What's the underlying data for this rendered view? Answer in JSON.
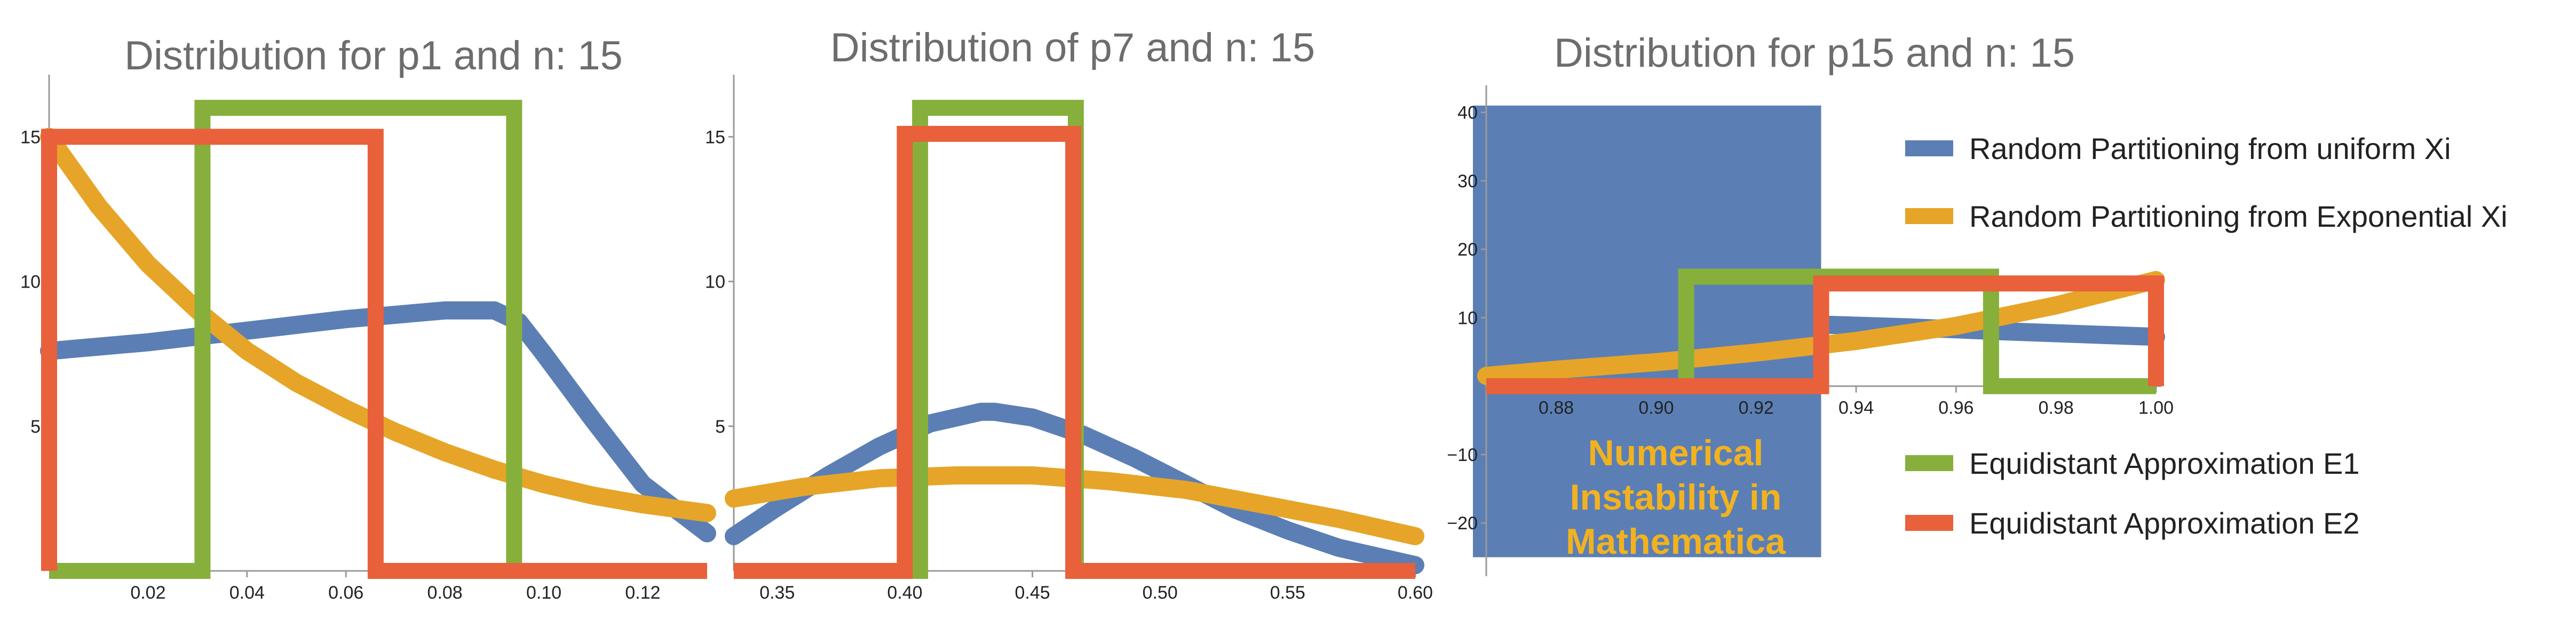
{
  "chart_data": [
    {
      "type": "line",
      "title": "Distribution for p1 and n: 15",
      "xlim": [
        0,
        0.133
      ],
      "ylim": [
        0,
        16.5
      ],
      "x_ticks": [
        "0.02",
        "0.04",
        "0.06",
        "0.08",
        "0.10",
        "0.12"
      ],
      "x_tick_values": [
        0.02,
        0.04,
        0.06,
        0.08,
        0.1,
        0.12
      ],
      "y_ticks": [
        "5",
        "10",
        "15"
      ],
      "y_tick_values": [
        5,
        10,
        15
      ],
      "series": [
        {
          "name": "Random Partitioning from uniform Xi",
          "color": "#5b7fb4",
          "x": [
            0,
            0.02,
            0.04,
            0.06,
            0.08,
            0.09,
            0.095,
            0.1,
            0.11,
            0.12,
            0.133
          ],
          "y": [
            7.6,
            7.9,
            8.3,
            8.7,
            9.0,
            9.0,
            8.6,
            7.5,
            5.2,
            3.0,
            1.3
          ]
        },
        {
          "name": "Random Partitioning from Exponential Xi",
          "color": "#e6a528",
          "x": [
            0,
            0.01,
            0.02,
            0.03,
            0.04,
            0.05,
            0.06,
            0.07,
            0.08,
            0.09,
            0.1,
            0.11,
            0.12,
            0.133
          ],
          "y": [
            15.0,
            12.6,
            10.6,
            9.0,
            7.6,
            6.5,
            5.6,
            4.8,
            4.1,
            3.5,
            3.0,
            2.6,
            2.3,
            2.0
          ]
        },
        {
          "name": "Equidistant Approximation E1",
          "color": "#86b03b",
          "step": true,
          "x": [
            0,
            0.031,
            0.031,
            0.094,
            0.094,
            0.133
          ],
          "y": [
            0,
            0,
            16.0,
            16.0,
            0,
            0
          ]
        },
        {
          "name": "Equidistant Approximation E2",
          "color": "#e8613a",
          "step": true,
          "x": [
            0,
            0,
            0.066,
            0.066,
            0.133
          ],
          "y": [
            0,
            15.0,
            15.0,
            0,
            0
          ]
        }
      ]
    },
    {
      "type": "line",
      "title": "Distribution of p7 and n: 15",
      "xlim": [
        0.333,
        0.6
      ],
      "ylim": [
        0,
        16.5
      ],
      "x_ticks": [
        "0.35",
        "0.40",
        "0.45",
        "0.50",
        "0.55",
        "0.60"
      ],
      "x_tick_values": [
        0.35,
        0.4,
        0.45,
        0.5,
        0.55,
        0.6
      ],
      "y_ticks": [
        "5",
        "10",
        "15"
      ],
      "y_tick_values": [
        5,
        10,
        15
      ],
      "series": [
        {
          "name": "Random Partitioning from uniform Xi",
          "color": "#5b7fb4",
          "x": [
            0.333,
            0.35,
            0.37,
            0.39,
            0.41,
            0.43,
            0.435,
            0.45,
            0.47,
            0.49,
            0.51,
            0.53,
            0.55,
            0.57,
            0.6
          ],
          "y": [
            1.2,
            2.2,
            3.3,
            4.3,
            5.1,
            5.5,
            5.5,
            5.3,
            4.7,
            3.9,
            3.0,
            2.1,
            1.4,
            0.8,
            0.2
          ]
        },
        {
          "name": "Random Partitioning from Exponential Xi",
          "color": "#e6a528",
          "x": [
            0.333,
            0.36,
            0.39,
            0.42,
            0.435,
            0.45,
            0.48,
            0.51,
            0.54,
            0.57,
            0.6
          ],
          "y": [
            2.5,
            2.9,
            3.2,
            3.3,
            3.3,
            3.3,
            3.1,
            2.8,
            2.3,
            1.8,
            1.2
          ]
        },
        {
          "name": "Equidistant Approximation E1",
          "color": "#86b03b",
          "step": true,
          "x": [
            0.333,
            0.406,
            0.406,
            0.467,
            0.467,
            0.6
          ],
          "y": [
            0,
            0,
            16.0,
            16.0,
            0,
            0
          ]
        },
        {
          "name": "Equidistant Approximation E2",
          "color": "#e8613a",
          "step": true,
          "x": [
            0.333,
            0.4,
            0.4,
            0.466,
            0.466,
            0.6
          ],
          "y": [
            0,
            0,
            15.1,
            15.1,
            0,
            0
          ]
        }
      ]
    },
    {
      "type": "line",
      "title": "Distribution for p15 and n: 15",
      "xlim": [
        0.866,
        1.0
      ],
      "ylim": [
        -27,
        42
      ],
      "x_ticks": [
        "0.88",
        "0.90",
        "0.92",
        "0.94",
        "0.96",
        "0.98",
        "1.00"
      ],
      "x_tick_values": [
        0.88,
        0.9,
        0.92,
        0.94,
        0.96,
        0.98,
        1.0
      ],
      "y_ticks": [
        "−20",
        "−10",
        "10",
        "20",
        "30",
        "40"
      ],
      "y_tick_values": [
        -20,
        -10,
        10,
        20,
        30,
        40
      ],
      "series": [
        {
          "name": "Random Partitioning from uniform Xi",
          "color": "#5b7fb4",
          "x": [
            0.933,
            0.95,
            0.97,
            1.0
          ],
          "y": [
            9.0,
            8.6,
            8.0,
            7.2
          ]
        },
        {
          "name": "Random Partitioning from Exponential Xi",
          "color": "#e6a528",
          "x": [
            0.866,
            0.88,
            0.9,
            0.92,
            0.94,
            0.96,
            0.98,
            1.0
          ],
          "y": [
            1.5,
            2.4,
            3.5,
            4.9,
            6.6,
            8.8,
            11.8,
            15.5
          ]
        },
        {
          "name": "Equidistant Approximation E1",
          "color": "#86b03b",
          "step": true,
          "x": [
            0.866,
            0.906,
            0.906,
            0.967,
            0.967,
            1.0
          ],
          "y": [
            0,
            0,
            16.0,
            16.0,
            0,
            0
          ]
        },
        {
          "name": "Equidistant Approximation E2",
          "color": "#e8613a",
          "step": true,
          "x": [
            0.866,
            0.933,
            0.933,
            1.0,
            1.0
          ],
          "y": [
            0,
            0,
            15.0,
            15.0,
            0
          ]
        }
      ],
      "shaded_region": {
        "x": [
          0.866,
          0.933
        ],
        "y": [
          -25,
          41
        ],
        "color": "#5b7fb4"
      },
      "annotation": {
        "lines": [
          "Numerical",
          "Instability in",
          "Mathematica"
        ],
        "color": "#f2b21f"
      }
    }
  ],
  "legend": {
    "entries": [
      {
        "label": "Random Partitioning from uniform Xi",
        "color": "#5b7fb4"
      },
      {
        "label": "Random Partitioning from Exponential Xi",
        "color": "#e6a528"
      },
      {
        "label": "Equidistant Approximation E1",
        "color": "#86b03b"
      },
      {
        "label": "Equidistant Approximation E2",
        "color": "#e8613a"
      }
    ]
  }
}
